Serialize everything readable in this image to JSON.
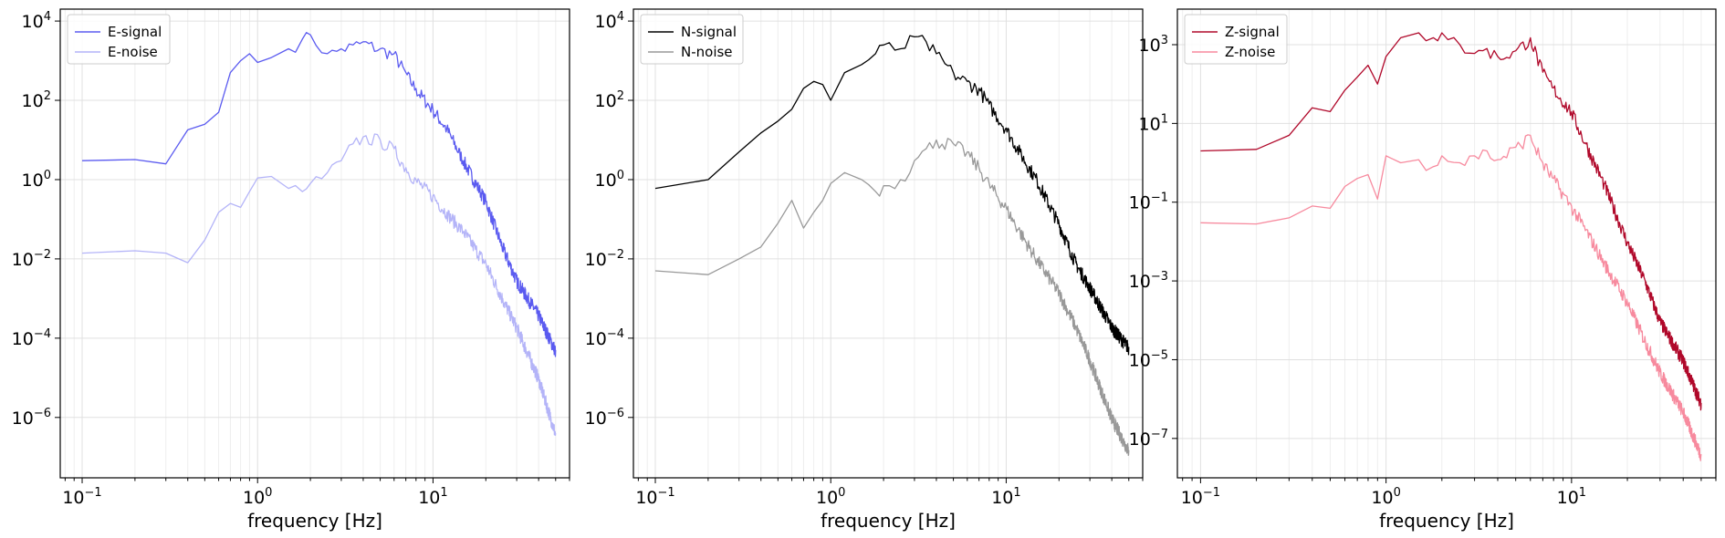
{
  "chart_data": [
    {
      "type": "line",
      "xscale": "log",
      "yscale": "log",
      "xlim": [
        0.075,
        60
      ],
      "ylim": [
        3e-08,
        20000
      ],
      "xlabel": "frequency [Hz]",
      "xticks": [
        {
          "base": "10",
          "exp": "−1",
          "value": 0.1
        },
        {
          "base": "10",
          "exp": "0",
          "value": 1
        },
        {
          "base": "10",
          "exp": "1",
          "value": 10
        }
      ],
      "yticks": [
        {
          "base": "10",
          "exp": "−6",
          "value": 1e-06
        },
        {
          "base": "10",
          "exp": "−4",
          "value": 0.0001
        },
        {
          "base": "10",
          "exp": "−2",
          "value": 0.01
        },
        {
          "base": "10",
          "exp": "0",
          "value": 1
        },
        {
          "base": "10",
          "exp": "2",
          "value": 100
        },
        {
          "base": "10",
          "exp": "4",
          "value": 10000
        }
      ],
      "grid": true,
      "legend_position": "top-left",
      "series": [
        {
          "name": "E-signal",
          "color": "#5b5bf0",
          "x": [
            0.1,
            0.2,
            0.3,
            0.4,
            0.5,
            0.6,
            0.7,
            0.8,
            0.9,
            1.0,
            1.2,
            1.5,
            1.8,
            2.0,
            2.5,
            3.0,
            3.5,
            4.0,
            5.0,
            6.0,
            7.0,
            8.0,
            10,
            12,
            15,
            20,
            25,
            30,
            40,
            50
          ],
          "y": [
            3,
            3.2,
            2.5,
            18,
            25,
            50,
            500,
            1000,
            1500,
            900,
            1200,
            2000,
            3500,
            4500,
            1500,
            2000,
            2500,
            3000,
            2000,
            1500,
            500,
            200,
            60,
            20,
            3,
            0.3,
            0.02,
            0.003,
            0.0004,
            5e-05
          ]
        },
        {
          "name": "E-noise",
          "color": "#b4b4f8",
          "x": [
            0.1,
            0.2,
            0.3,
            0.4,
            0.5,
            0.6,
            0.7,
            0.8,
            0.9,
            1.0,
            1.2,
            1.5,
            1.8,
            2.0,
            2.5,
            3.0,
            3.5,
            4.0,
            5.0,
            6.0,
            7.0,
            8.0,
            10,
            12,
            15,
            20,
            25,
            30,
            40,
            50
          ],
          "y": [
            0.014,
            0.016,
            0.014,
            0.008,
            0.03,
            0.15,
            0.25,
            0.2,
            0.5,
            1.1,
            1.2,
            0.6,
            0.5,
            0.8,
            1.5,
            3,
            8,
            12,
            10,
            6,
            2,
            1,
            0.4,
            0.15,
            0.05,
            0.008,
            0.001,
            0.0002,
            1e-05,
            4e-07
          ]
        }
      ]
    },
    {
      "type": "line",
      "xscale": "log",
      "yscale": "log",
      "xlim": [
        0.075,
        60
      ],
      "ylim": [
        3e-08,
        20000
      ],
      "xlabel": "frequency [Hz]",
      "xticks": [
        {
          "base": "10",
          "exp": "−1",
          "value": 0.1
        },
        {
          "base": "10",
          "exp": "0",
          "value": 1
        },
        {
          "base": "10",
          "exp": "1",
          "value": 10
        }
      ],
      "yticks": [
        {
          "base": "10",
          "exp": "−6",
          "value": 1e-06
        },
        {
          "base": "10",
          "exp": "−4",
          "value": 0.0001
        },
        {
          "base": "10",
          "exp": "−2",
          "value": 0.01
        },
        {
          "base": "10",
          "exp": "0",
          "value": 1
        },
        {
          "base": "10",
          "exp": "2",
          "value": 100
        },
        {
          "base": "10",
          "exp": "4",
          "value": 10000
        }
      ],
      "grid": true,
      "legend_position": "top-left",
      "series": [
        {
          "name": "N-signal",
          "color": "#000000",
          "x": [
            0.1,
            0.2,
            0.3,
            0.4,
            0.5,
            0.6,
            0.7,
            0.8,
            0.9,
            1.0,
            1.2,
            1.5,
            1.8,
            2.0,
            2.5,
            3.0,
            3.5,
            4.0,
            5.0,
            6.0,
            7.0,
            8.0,
            10,
            12,
            15,
            20,
            25,
            30,
            40,
            50
          ],
          "y": [
            0.6,
            1.0,
            5,
            15,
            30,
            60,
            200,
            300,
            250,
            100,
            500,
            800,
            1500,
            2500,
            2000,
            4000,
            3000,
            1500,
            500,
            300,
            200,
            80,
            20,
            5,
            1,
            0.08,
            0.008,
            0.002,
            0.0002,
            6e-05
          ]
        },
        {
          "name": "N-noise",
          "color": "#999999",
          "x": [
            0.1,
            0.2,
            0.3,
            0.4,
            0.5,
            0.6,
            0.7,
            0.8,
            0.9,
            1.0,
            1.2,
            1.5,
            1.8,
            2.0,
            2.5,
            3.0,
            3.5,
            4.0,
            5.0,
            6.0,
            7.0,
            8.0,
            10,
            12,
            15,
            20,
            25,
            30,
            40,
            50
          ],
          "y": [
            0.005,
            0.004,
            0.01,
            0.02,
            0.08,
            0.3,
            0.06,
            0.15,
            0.3,
            0.8,
            1.5,
            1.0,
            0.5,
            0.7,
            1.0,
            3,
            6,
            10,
            8,
            5,
            2,
            0.8,
            0.2,
            0.05,
            0.01,
            0.0015,
            0.0002,
            3e-05,
            1e-06,
            1.5e-07
          ]
        }
      ]
    },
    {
      "type": "line",
      "xscale": "log",
      "yscale": "log",
      "xlim": [
        0.075,
        60
      ],
      "ylim": [
        1e-08,
        8000
      ],
      "xlabel": "frequency [Hz]",
      "xticks": [
        {
          "base": "10",
          "exp": "−1",
          "value": 0.1
        },
        {
          "base": "10",
          "exp": "0",
          "value": 1
        },
        {
          "base": "10",
          "exp": "1",
          "value": 10
        }
      ],
      "yticks": [
        {
          "base": "10",
          "exp": "−7",
          "value": 1e-07
        },
        {
          "base": "10",
          "exp": "−5",
          "value": 1e-05
        },
        {
          "base": "10",
          "exp": "−3",
          "value": 0.001
        },
        {
          "base": "10",
          "exp": "−1",
          "value": 0.1
        },
        {
          "base": "10",
          "exp": "1",
          "value": 10
        },
        {
          "base": "10",
          "exp": "3",
          "value": 1000
        }
      ],
      "grid": true,
      "legend_position": "top-left",
      "series": [
        {
          "name": "Z-signal",
          "color": "#b0082a",
          "x": [
            0.1,
            0.2,
            0.3,
            0.4,
            0.5,
            0.6,
            0.7,
            0.8,
            0.9,
            1.0,
            1.2,
            1.5,
            1.8,
            2.0,
            2.5,
            3.0,
            3.5,
            4.0,
            5.0,
            6.0,
            7.0,
            8.0,
            10,
            12,
            15,
            20,
            25,
            30,
            40,
            50
          ],
          "y": [
            2,
            2.2,
            5,
            25,
            20,
            70,
            150,
            300,
            100,
            500,
            1500,
            2000,
            1500,
            2000,
            1000,
            600,
            800,
            500,
            700,
            1500,
            200,
            80,
            20,
            3,
            0.3,
            0.01,
            0.001,
            0.0001,
            1e-05,
            8e-07
          ]
        },
        {
          "name": "Z-noise",
          "color": "#f78a9e",
          "x": [
            0.1,
            0.2,
            0.3,
            0.4,
            0.5,
            0.6,
            0.7,
            0.8,
            0.9,
            1.0,
            1.2,
            1.5,
            1.8,
            2.0,
            2.5,
            3.0,
            3.5,
            4.0,
            5.0,
            6.0,
            7.0,
            8.0,
            10,
            12,
            15,
            20,
            25,
            30,
            40,
            50
          ],
          "y": [
            0.03,
            0.028,
            0.04,
            0.08,
            0.07,
            0.25,
            0.4,
            0.5,
            0.12,
            1.5,
            1.0,
            1.2,
            0.8,
            1.5,
            1.0,
            1.5,
            2,
            1.2,
            2.5,
            5,
            1,
            0.4,
            0.08,
            0.02,
            0.003,
            0.0003,
            3e-05,
            5e-06,
            5e-07,
            4e-08
          ]
        }
      ]
    }
  ]
}
